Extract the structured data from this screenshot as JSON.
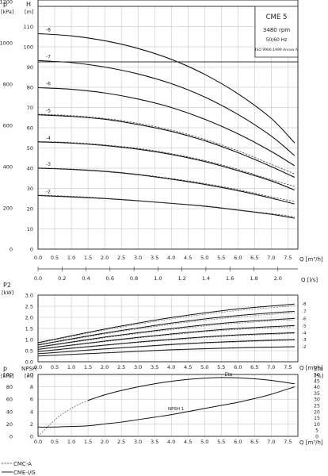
{
  "chart_data": [
    {
      "type": "line",
      "panel": "head",
      "axis_titles": {
        "left_top": "p",
        "left_unit": "[kPa]",
        "left2_top": "H",
        "left2_unit": "[m]",
        "x_unit": "Q [m³/h]",
        "x2_unit": "Q [l/s]"
      },
      "info": {
        "model": "CME 5",
        "speed": "3480 rpm",
        "freq": "50/60 Hz",
        "standard": "ISO 9906:1999 Annex A"
      },
      "x_ticks": [
        "0.0",
        "0.5",
        "1.0",
        "1.5",
        "2.0",
        "2.5",
        "3.0",
        "3.5",
        "4.0",
        "4.5",
        "5.0",
        "5.5",
        "6.0",
        "6.5",
        "7.0",
        "7.5"
      ],
      "x_range": [
        0,
        7.8
      ],
      "x2_ticks": [
        "0.0",
        "0.2",
        "0.4",
        "0.6",
        "0.8",
        "1.0",
        "1.2",
        "1.4",
        "1.6",
        "1.8",
        "2.0"
      ],
      "y_range_m": [
        0,
        120
      ],
      "y_ticks_m": [
        "0",
        "10",
        "20",
        "30",
        "40",
        "50",
        "60",
        "70",
        "80",
        "90",
        "100",
        "110"
      ],
      "y_ticks_kpa": [
        "0",
        "200",
        "400",
        "600",
        "800",
        "1000",
        "1200"
      ],
      "grid": true,
      "series": [
        {
          "name": "-2",
          "x": [
            0.0,
            1.0,
            2.0,
            3.0,
            4.0,
            5.0,
            6.0,
            7.0,
            7.7
          ],
          "y": [
            26.5,
            25.8,
            25.0,
            23.9,
            22.6,
            21.2,
            19.3,
            17.2,
            15.3
          ],
          "dashed_y": [
            26.7,
            26.1,
            25.2,
            24.0,
            22.7,
            21.4,
            19.4,
            17.5,
            16.0
          ]
        },
        {
          "name": "-3",
          "x": [
            0.0,
            1.0,
            2.0,
            3.0,
            4.0,
            5.0,
            6.0,
            7.0,
            7.7
          ],
          "y": [
            40.0,
            39.4,
            38.4,
            36.8,
            34.6,
            32.0,
            28.9,
            25.2,
            22.3
          ],
          "dashed_y": [
            40.2,
            39.6,
            38.6,
            37.0,
            34.9,
            32.4,
            29.4,
            25.8,
            23.5
          ]
        },
        {
          "name": "-4",
          "x": [
            0.0,
            1.0,
            2.0,
            3.0,
            4.0,
            5.0,
            6.0,
            7.0,
            7.7
          ],
          "y": [
            53.0,
            52.4,
            51.2,
            49.4,
            46.8,
            43.3,
            38.8,
            33.7,
            29.2
          ],
          "dashed_y": [
            53.2,
            52.7,
            51.5,
            49.8,
            47.2,
            43.8,
            39.4,
            34.3,
            31.0
          ]
        },
        {
          "name": "-5",
          "x": [
            0.0,
            1.0,
            2.0,
            3.0,
            4.0,
            5.0,
            6.0,
            7.0,
            7.7
          ],
          "y": [
            66.4,
            65.6,
            64.2,
            61.6,
            58.2,
            53.6,
            47.7,
            40.8,
            35.5
          ],
          "dashed_y": [
            66.7,
            66.0,
            64.6,
            62.2,
            58.8,
            54.3,
            48.6,
            41.9,
            37.2
          ]
        },
        {
          "name": "-6",
          "x": [
            0.0,
            1.0,
            2.0,
            3.0,
            4.0,
            5.0,
            6.0,
            7.0,
            7.7
          ],
          "y": [
            79.8,
            79.0,
            77.2,
            74.2,
            70.0,
            64.2,
            57.0,
            48.3,
            41.2
          ]
        },
        {
          "name": "-7",
          "x": [
            0.0,
            1.0,
            2.0,
            3.0,
            4.0,
            5.0,
            6.0,
            7.0,
            7.7
          ],
          "y": [
            93.2,
            92.2,
            90.0,
            86.6,
            81.8,
            75.2,
            66.6,
            55.9,
            46.2
          ]
        },
        {
          "name": "-8",
          "x": [
            0.0,
            1.0,
            2.0,
            3.0,
            4.0,
            5.0,
            6.0,
            7.0,
            7.7
          ],
          "y": [
            106.5,
            105.4,
            103.0,
            99.2,
            93.8,
            86.4,
            76.8,
            64.6,
            52.5
          ]
        }
      ]
    },
    {
      "type": "line",
      "panel": "power",
      "axis_titles": {
        "left_top": "P2",
        "left_unit": "[kW]",
        "x_unit": "Q [m³/h]"
      },
      "x_ticks": [
        "0.0",
        "0.5",
        "1.0",
        "1.5",
        "2.0",
        "2.5",
        "3.0",
        "3.5",
        "4.0",
        "4.5",
        "5.0",
        "5.5",
        "6.0",
        "6.5",
        "7.0",
        "7.5"
      ],
      "x_range": [
        0,
        7.8
      ],
      "y_range": [
        0,
        3.0
      ],
      "y_ticks": [
        "0.0",
        "0.5",
        "1.0",
        "1.5",
        "2.0",
        "2.5",
        "3.0"
      ],
      "grid": true,
      "series": [
        {
          "name": "-2",
          "x": [
            0.0,
            1.0,
            2.0,
            3.0,
            4.0,
            5.0,
            6.0,
            7.0,
            7.7
          ],
          "y": [
            0.26,
            0.33,
            0.4,
            0.47,
            0.54,
            0.59,
            0.63,
            0.66,
            0.68
          ]
        },
        {
          "name": "-3",
          "x": [
            0.0,
            1.0,
            2.0,
            3.0,
            4.0,
            5.0,
            6.0,
            7.0,
            7.7
          ],
          "y": [
            0.36,
            0.47,
            0.58,
            0.68,
            0.78,
            0.86,
            0.92,
            0.97,
            1.0
          ]
        },
        {
          "name": "-4",
          "x": [
            0.0,
            1.0,
            2.0,
            3.0,
            4.0,
            5.0,
            6.0,
            7.0,
            7.7
          ],
          "y": [
            0.46,
            0.61,
            0.75,
            0.89,
            1.01,
            1.12,
            1.21,
            1.27,
            1.31
          ]
        },
        {
          "name": "-5",
          "x": [
            0.0,
            1.0,
            2.0,
            3.0,
            4.0,
            5.0,
            6.0,
            7.0,
            7.7
          ],
          "y": [
            0.56,
            0.75,
            0.93,
            1.1,
            1.25,
            1.39,
            1.5,
            1.58,
            1.63
          ]
        },
        {
          "name": "-6",
          "x": [
            0.0,
            1.0,
            2.0,
            3.0,
            4.0,
            5.0,
            6.0,
            7.0,
            7.7
          ],
          "y": [
            0.66,
            0.89,
            1.11,
            1.31,
            1.49,
            1.66,
            1.79,
            1.89,
            1.95
          ]
        },
        {
          "name": "-7",
          "x": [
            0.0,
            1.0,
            2.0,
            3.0,
            4.0,
            5.0,
            6.0,
            7.0,
            7.7
          ],
          "y": [
            0.76,
            1.03,
            1.29,
            1.52,
            1.74,
            1.93,
            2.08,
            2.2,
            2.27
          ]
        },
        {
          "name": "-8",
          "x": [
            0.0,
            1.0,
            2.0,
            3.0,
            4.0,
            5.0,
            6.0,
            7.0,
            7.7
          ],
          "y": [
            0.86,
            1.17,
            1.47,
            1.74,
            1.99,
            2.2,
            2.38,
            2.51,
            2.6
          ]
        }
      ]
    },
    {
      "type": "line",
      "panel": "npsh-eta",
      "axis_titles": {
        "left_top": "p",
        "left_unit": "[kPa]",
        "left2_top": "NPSH",
        "left2_unit": "[m]",
        "right_top": "Eta",
        "right_unit": "[%]",
        "x_unit": "Q [m³/h]"
      },
      "x_ticks": [
        "0.0",
        "0.5",
        "1.0",
        "1.5",
        "2.0",
        "2.5",
        "3.0",
        "3.5",
        "4.0",
        "4.5",
        "5.0",
        "5.5",
        "6.0",
        "6.5",
        "7.0",
        "7.5"
      ],
      "x_range": [
        0,
        7.8
      ],
      "y_range_m": [
        0,
        10
      ],
      "y_ticks_m": [
        "0",
        "2",
        "4",
        "6",
        "8",
        "10"
      ],
      "y_ticks_kpa": [
        "0",
        "20",
        "40",
        "60",
        "80",
        "100"
      ],
      "y_ticks_pct": [
        "0",
        "5",
        "10",
        "15",
        "20",
        "25",
        "30",
        "35",
        "40",
        "45",
        "50"
      ],
      "grid": true,
      "series": [
        {
          "name": "Eta",
          "x": [
            1.5,
            2.0,
            2.5,
            3.0,
            3.5,
            4.0,
            4.5,
            5.0,
            5.5,
            6.0,
            6.5,
            7.0,
            7.7
          ],
          "y": [
            29.0,
            33.5,
            37.0,
            40.0,
            42.5,
            44.5,
            46.0,
            47.0,
            47.5,
            47.3,
            46.5,
            45.2,
            42.5
          ],
          "dashed_x": [
            0.0,
            0.3,
            0.6,
            0.9,
            1.2,
            1.5
          ],
          "dashed_y": [
            0.0,
            8.0,
            15.5,
            21.0,
            25.5,
            29.0
          ]
        },
        {
          "name": "NPSH 1",
          "x": [
            0.0,
            0.5,
            1.0,
            1.5,
            2.0,
            2.5,
            3.0,
            3.5,
            4.0,
            4.5,
            5.0,
            5.5,
            6.0,
            6.5,
            7.0,
            7.7
          ],
          "y": [
            1.5,
            1.5,
            1.6,
            1.7,
            2.0,
            2.3,
            2.7,
            3.1,
            3.5,
            4.0,
            4.5,
            5.0,
            5.5,
            6.1,
            6.8,
            8.0
          ]
        }
      ]
    }
  ],
  "legend": [
    {
      "label": "CMC-A",
      "style": "dashed"
    },
    {
      "label": "CME-I/G",
      "style": "solid"
    }
  ]
}
